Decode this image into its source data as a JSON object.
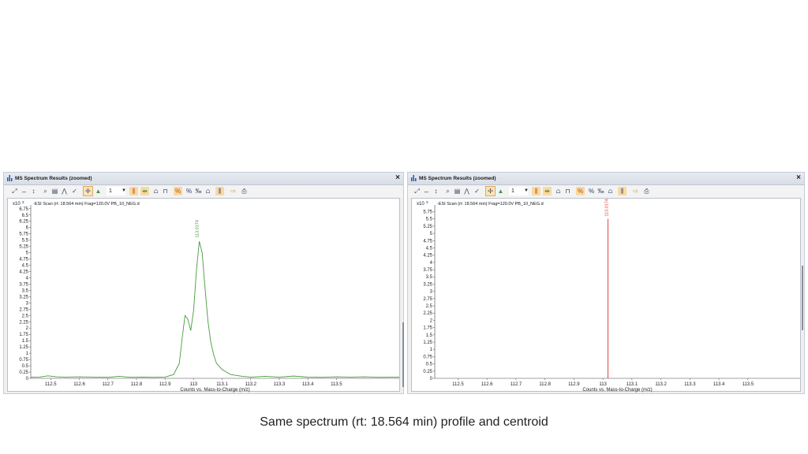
{
  "caption": "Same spectrum (rt: 18.564 min) profile and centroid",
  "windows": [
    {
      "title": "MS Spectrum Results (zoomed)",
      "close_glyph": "×",
      "toolbar": {
        "icons": [
          "autoscale-icon",
          "zoom-x-icon",
          "zoom-y-icon",
          "magnify-icon",
          "spectrum-list-icon",
          "peak-label-icon",
          "check-peak-icon",
          "select-tool-icon",
          "triangle-peak-icon",
          "combo",
          "bar-peak-icon",
          "range-icon",
          "dbl-peak-icon",
          "window-icon",
          "no-percent-icon",
          "percent-icon",
          "percent-small-icon",
          "compare-icon",
          "bars-icon",
          "export-icon",
          "print-icon"
        ],
        "combo_value": "1"
      },
      "chart_data": {
        "type": "line",
        "mode": "profile",
        "scan_label": "-ESI Scan (rt: 18.564 min) Frag=120.0V PB_10_NEG.d",
        "y_multiplier_label": "x10",
        "y_multiplier_exp": "3",
        "xlabel": "Counts vs. Mass-to-Charge (m/z)",
        "xlim": [
          112.43,
          113.72
        ],
        "ylim": [
          0,
          6.9
        ],
        "x_ticks": [
          {
            "v": 112.5,
            "label": "112.5"
          },
          {
            "v": 112.6,
            "label": "112.6"
          },
          {
            "v": 112.7,
            "label": "112.7"
          },
          {
            "v": 112.8,
            "label": "112.8"
          },
          {
            "v": 112.9,
            "label": "112.9"
          },
          {
            "v": 113.0,
            "label": "113"
          },
          {
            "v": 113.1,
            "label": "113.1"
          },
          {
            "v": 113.2,
            "label": "113.2"
          },
          {
            "v": 113.3,
            "label": "113.3"
          },
          {
            "v": 113.4,
            "label": "113.4"
          },
          {
            "v": 113.5,
            "label": "113.5"
          }
        ],
        "y_ticks": [
          {
            "v": 0,
            "label": "0"
          },
          {
            "v": 0.25,
            "label": "0.25"
          },
          {
            "v": 0.5,
            "label": "0.5"
          },
          {
            "v": 0.75,
            "label": "0.75"
          },
          {
            "v": 1,
            "label": "1"
          },
          {
            "v": 1.25,
            "label": "1.25"
          },
          {
            "v": 1.5,
            "label": "1.5"
          },
          {
            "v": 1.75,
            "label": "1.75"
          },
          {
            "v": 2,
            "label": "2"
          },
          {
            "v": 2.25,
            "label": "2.25"
          },
          {
            "v": 2.5,
            "label": "2.5"
          },
          {
            "v": 2.75,
            "label": "2.75"
          },
          {
            "v": 3,
            "label": "3"
          },
          {
            "v": 3.25,
            "label": "3.25"
          },
          {
            "v": 3.5,
            "label": "3.5"
          },
          {
            "v": 3.75,
            "label": "3.75"
          },
          {
            "v": 4,
            "label": "4"
          },
          {
            "v": 4.25,
            "label": "4.25"
          },
          {
            "v": 4.5,
            "label": "4.5"
          },
          {
            "v": 4.75,
            "label": "4.75"
          },
          {
            "v": 5,
            "label": "5"
          },
          {
            "v": 5.25,
            "label": "5.25"
          },
          {
            "v": 5.5,
            "label": "5.5"
          },
          {
            "v": 5.75,
            "label": "5.75"
          },
          {
            "v": 6,
            "label": "6"
          },
          {
            "v": 6.25,
            "label": "6.25"
          },
          {
            "v": 6.5,
            "label": "6.5"
          },
          {
            "v": 6.75,
            "label": "6.75"
          }
        ],
        "line_color": "#4a9a3e",
        "series": [
          {
            "x": [
              112.43,
              112.46,
              112.49,
              112.52,
              112.55,
              112.6,
              112.65,
              112.7,
              112.74,
              112.78,
              112.82,
              112.86,
              112.9,
              112.93,
              112.95,
              112.96,
              112.97,
              112.98,
              112.99,
              113.0,
              113.01,
              113.02,
              113.03,
              113.04,
              113.05,
              113.06,
              113.07,
              113.08,
              113.1,
              113.13,
              113.17,
              113.2,
              113.25,
              113.3,
              113.35,
              113.4,
              113.45,
              113.5,
              113.55,
              113.6,
              113.65,
              113.72
            ],
            "y": [
              0.04,
              0.05,
              0.1,
              0.06,
              0.05,
              0.06,
              0.05,
              0.04,
              0.08,
              0.04,
              0.05,
              0.04,
              0.05,
              0.15,
              0.6,
              1.6,
              2.5,
              2.35,
              1.9,
              2.7,
              4.3,
              5.45,
              5.0,
              3.6,
              2.3,
              1.45,
              0.95,
              0.6,
              0.35,
              0.15,
              0.08,
              0.05,
              0.08,
              0.05,
              0.09,
              0.05,
              0.04,
              0.06,
              0.05,
              0.06,
              0.04,
              0.05
            ]
          }
        ],
        "peak_labels": [
          {
            "x": 113.0174,
            "y": 5.5,
            "label": "113.0174"
          }
        ]
      }
    },
    {
      "title": "MS Spectrum Results (zoomed)",
      "close_glyph": "×",
      "toolbar": {
        "icons": [
          "autoscale-icon",
          "zoom-x-icon",
          "zoom-y-icon",
          "magnify-icon",
          "spectrum-list-icon",
          "peak-label-icon",
          "check-peak-icon",
          "select-tool-icon",
          "triangle-peak-icon",
          "combo",
          "bar-peak-icon",
          "range-icon",
          "dbl-peak-icon",
          "window-icon",
          "no-percent-icon",
          "percent-icon",
          "percent-small-icon",
          "compare-icon",
          "bars-icon",
          "export-icon",
          "print-icon"
        ],
        "combo_value": "1"
      },
      "chart_data": {
        "type": "bar",
        "mode": "centroid",
        "scan_label": "-ESI Scan (rt: 18.564 min) Frag=120.0V PB_10_NEG.d",
        "y_multiplier_label": "x10",
        "y_multiplier_exp": "3",
        "xlabel": "Counts vs. Mass-to-Charge (m/z)",
        "xlim": [
          112.42,
          113.68
        ],
        "ylim": [
          0,
          5.98
        ],
        "x_ticks": [
          {
            "v": 112.5,
            "label": "112.5"
          },
          {
            "v": 112.6,
            "label": "112.6"
          },
          {
            "v": 112.7,
            "label": "112.7"
          },
          {
            "v": 112.8,
            "label": "112.8"
          },
          {
            "v": 112.9,
            "label": "112.9"
          },
          {
            "v": 113.0,
            "label": "113"
          },
          {
            "v": 113.1,
            "label": "113.1"
          },
          {
            "v": 113.2,
            "label": "113.2"
          },
          {
            "v": 113.3,
            "label": "113.3"
          },
          {
            "v": 113.4,
            "label": "113.4"
          },
          {
            "v": 113.5,
            "label": "113.5"
          }
        ],
        "y_ticks": [
          {
            "v": 0,
            "label": "0"
          },
          {
            "v": 0.25,
            "label": "0.25"
          },
          {
            "v": 0.5,
            "label": "0.5"
          },
          {
            "v": 0.75,
            "label": "0.75"
          },
          {
            "v": 1,
            "label": "1"
          },
          {
            "v": 1.25,
            "label": "1.25"
          },
          {
            "v": 1.5,
            "label": "1.5"
          },
          {
            "v": 1.75,
            "label": "1.75"
          },
          {
            "v": 2,
            "label": "2"
          },
          {
            "v": 2.25,
            "label": "2.25"
          },
          {
            "v": 2.5,
            "label": "2.5"
          },
          {
            "v": 2.75,
            "label": "2.75"
          },
          {
            "v": 3,
            "label": "3"
          },
          {
            "v": 3.25,
            "label": "3.25"
          },
          {
            "v": 3.5,
            "label": "3.5"
          },
          {
            "v": 3.75,
            "label": "3.75"
          },
          {
            "v": 4,
            "label": "4"
          },
          {
            "v": 4.25,
            "label": "4.25"
          },
          {
            "v": 4.5,
            "label": "4.5"
          },
          {
            "v": 4.75,
            "label": "4.75"
          },
          {
            "v": 5,
            "label": "5"
          },
          {
            "v": 5.25,
            "label": "5.25"
          },
          {
            "v": 5.5,
            "label": "5.5"
          },
          {
            "v": 5.75,
            "label": "5.75"
          }
        ],
        "line_color": "#e04848",
        "peaks": [
          {
            "x": 113.0174,
            "y": 5.5,
            "label": "113.0174"
          }
        ]
      }
    }
  ]
}
